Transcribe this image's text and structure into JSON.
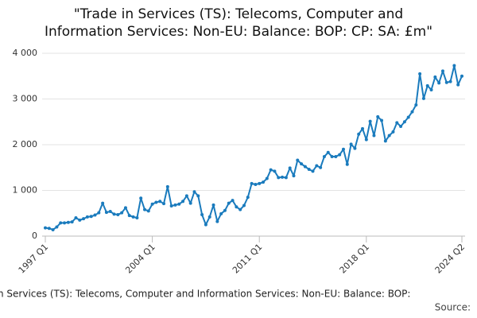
{
  "chart_data": {
    "type": "line",
    "title": [
      "\"Trade in Services (TS): Telecoms, Computer and",
      "Information Services: Non-EU: Balance: BOP: CP: SA: £m\""
    ],
    "caption": "n Services (TS): Telecoms, Computer and Information Services: Non-EU: Balance: BOP:",
    "source": "Source:",
    "categories": [
      "1997 Q1",
      null,
      null,
      null,
      null,
      null,
      null,
      null,
      null,
      null,
      null,
      null,
      null,
      null,
      null,
      null,
      null,
      null,
      null,
      null,
      null,
      null,
      null,
      null,
      null,
      null,
      null,
      null,
      "2004 Q1",
      null,
      null,
      null,
      null,
      null,
      null,
      null,
      null,
      null,
      null,
      null,
      null,
      null,
      null,
      null,
      null,
      null,
      null,
      null,
      null,
      null,
      null,
      null,
      null,
      null,
      null,
      null,
      "2011 Q1",
      null,
      null,
      null,
      null,
      null,
      null,
      null,
      null,
      null,
      null,
      null,
      null,
      null,
      null,
      null,
      null,
      null,
      null,
      null,
      null,
      null,
      null,
      null,
      null,
      null,
      null,
      null,
      "2018 Q1",
      null,
      null,
      null,
      null,
      null,
      null,
      null,
      null,
      null,
      null,
      null,
      null,
      null,
      null,
      null,
      null,
      null,
      null,
      null,
      null,
      null,
      null,
      null,
      null,
      "2024 Q2"
    ],
    "series": [
      {
        "color": "#1a7bbd",
        "values": [
          180,
          170,
          140,
          200,
          290,
          290,
          300,
          310,
          400,
          350,
          380,
          420,
          430,
          460,
          510,
          720,
          520,
          540,
          480,
          470,
          510,
          620,
          450,
          420,
          400,
          830,
          580,
          550,
          700,
          740,
          760,
          710,
          1080,
          660,
          680,
          700,
          760,
          880,
          720,
          970,
          880,
          470,
          250,
          420,
          680,
          320,
          490,
          560,
          720,
          780,
          640,
          580,
          670,
          850,
          1150,
          1130,
          1150,
          1180,
          1260,
          1450,
          1420,
          1280,
          1290,
          1280,
          1490,
          1320,
          1660,
          1580,
          1520,
          1460,
          1420,
          1540,
          1500,
          1740,
          1830,
          1740,
          1740,
          1780,
          1900,
          1570,
          2010,
          1920,
          2230,
          2350,
          2110,
          2510,
          2200,
          2610,
          2530,
          2080,
          2200,
          2280,
          2480,
          2400,
          2500,
          2600,
          2720,
          2870,
          3550,
          3010,
          3290,
          3200,
          3480,
          3350,
          3610,
          3360,
          3380,
          3730,
          3310,
          3500
        ]
      }
    ],
    "ylim": [
      0,
      4000
    ],
    "yticks": [
      0,
      {
        "value": 1000,
        "label": "1 000"
      },
      {
        "value": 2000,
        "label": "2 000"
      },
      {
        "value": 3000,
        "label": "3 000"
      },
      {
        "value": 4000,
        "label": "4 000"
      }
    ],
    "grid": true
  }
}
